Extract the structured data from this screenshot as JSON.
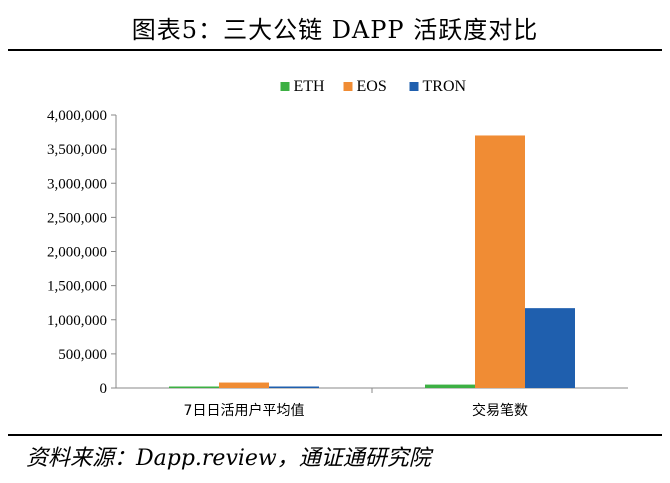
{
  "figure": {
    "title": "图表5：三大公链 DAPP 活跃度对比",
    "source": "资料来源：Dapp.review，通证通研究院"
  },
  "chart_data": {
    "type": "bar",
    "categories": [
      "7日日活用户平均值",
      "交易笔数"
    ],
    "series": [
      {
        "name": "ETH",
        "color": "#3cb043",
        "values": [
          8000,
          50000
        ]
      },
      {
        "name": "EOS",
        "color": "#f08c34",
        "values": [
          80000,
          3700000
        ]
      },
      {
        "name": "TRON",
        "color": "#1f5fae",
        "values": [
          20000,
          1170000
        ]
      }
    ],
    "y_ticks": [
      "0",
      "500,000",
      "1,000,000",
      "1,500,000",
      "2,000,000",
      "2,500,000",
      "3,000,000",
      "3,500,000",
      "4,000,000"
    ],
    "ylim": [
      0,
      4000000
    ],
    "y_tick_step": 500000,
    "legend_position": "top-center",
    "grid": false
  }
}
